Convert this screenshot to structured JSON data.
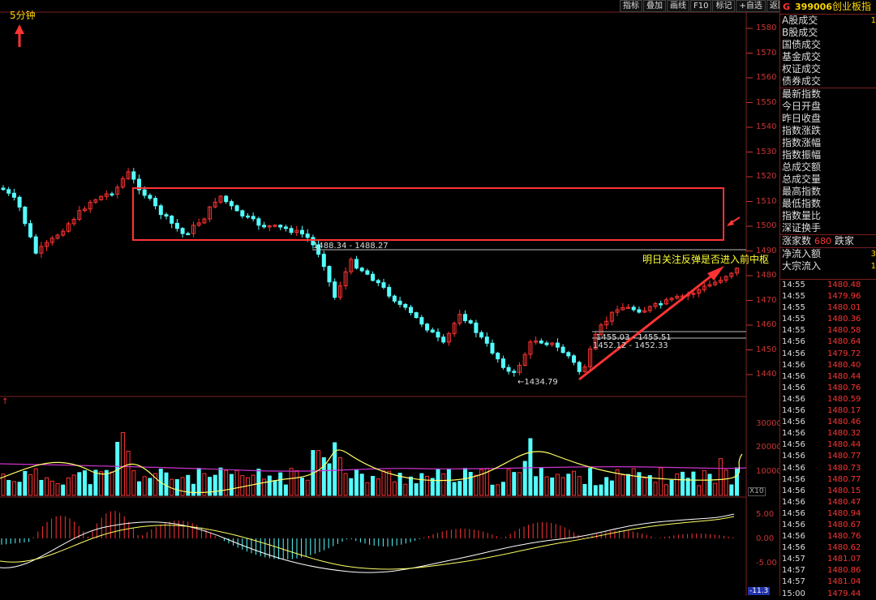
{
  "toolbar": {
    "buttons": [
      "指标",
      "叠加",
      "画线",
      "F10",
      "标记",
      "+自选",
      "返回"
    ]
  },
  "period": "5分钟",
  "annotation": "明日关注反弹是否进入前中枢",
  "price_labels": [
    {
      "text": "1488.34 - 1488.27"
    },
    {
      "text": "1455.03 - 1455.51"
    },
    {
      "text": "1452.12 - 1452.33"
    },
    {
      "text": "1434.79"
    }
  ],
  "price_axis": [
    "1580",
    "1570",
    "1560",
    "1550",
    "1540",
    "1530",
    "1520",
    "1510",
    "1500",
    "1490",
    "1480",
    "1470",
    "1460",
    "1450",
    "1440"
  ],
  "volume_axis": [
    "30000",
    "20000",
    "10000"
  ],
  "volume_unit": "X10",
  "macd_axis": [
    "5.00",
    "0.00",
    "-5.00"
  ],
  "macd_value": "-11.3",
  "colors": {
    "up": "#ff3333",
    "down": "#54ffff",
    "box": "#ff3333",
    "ma_yellow": "#ffff66",
    "ma_magenta": "#cc33cc"
  },
  "right_panel": {
    "marker": "G",
    "code": "399006",
    "name": "创业板指",
    "top_rows": [
      {
        "label": "A股成交",
        "value": "1"
      },
      {
        "label": "B股成交",
        "value": ""
      },
      {
        "label": "国债成交",
        "value": ""
      },
      {
        "label": "基金成交",
        "value": ""
      },
      {
        "label": "权证成交",
        "value": ""
      },
      {
        "label": "债券成交",
        "value": ""
      }
    ],
    "index_rows": [
      {
        "label": "最新指数"
      },
      {
        "label": "今日开盘"
      },
      {
        "label": "昨日收盘"
      },
      {
        "label": "指数涨跌"
      },
      {
        "label": "指数涨幅"
      },
      {
        "label": "指数振幅"
      },
      {
        "label": "总成交额"
      },
      {
        "label": "总成交量"
      },
      {
        "label": "最高指数"
      },
      {
        "label": "最低指数"
      },
      {
        "label": "指数量比"
      },
      {
        "label": "深证换手"
      }
    ],
    "rise_label": "涨家数",
    "rise_value": "680",
    "fall_label": "跌家",
    "flow_rows": [
      {
        "label": "净流入额",
        "value": "3"
      },
      {
        "label": "大宗流入",
        "value": "1"
      }
    ],
    "ticks": [
      {
        "t": "14:55",
        "p": "1480.48"
      },
      {
        "t": "14:55",
        "p": "1479.96"
      },
      {
        "t": "14:55",
        "p": "1480.01"
      },
      {
        "t": "14:55",
        "p": "1480.36"
      },
      {
        "t": "14:55",
        "p": "1480.58"
      },
      {
        "t": "14:56",
        "p": "1480.64"
      },
      {
        "t": "14:56",
        "p": "1479.72"
      },
      {
        "t": "14:56",
        "p": "1480.40"
      },
      {
        "t": "14:56",
        "p": "1480.44"
      },
      {
        "t": "14:56",
        "p": "1480.76"
      },
      {
        "t": "14:56",
        "p": "1480.59"
      },
      {
        "t": "14:56",
        "p": "1480.17"
      },
      {
        "t": "14:56",
        "p": "1480.46"
      },
      {
        "t": "14:56",
        "p": "1480.32"
      },
      {
        "t": "14:56",
        "p": "1480.44"
      },
      {
        "t": "14:56",
        "p": "1480.77"
      },
      {
        "t": "14:56",
        "p": "1480.73"
      },
      {
        "t": "14:56",
        "p": "1480.77"
      },
      {
        "t": "14:56",
        "p": "1480.15"
      },
      {
        "t": "14:56",
        "p": "1480.47"
      },
      {
        "t": "14:56",
        "p": "1480.94"
      },
      {
        "t": "14:56",
        "p": "1480.67"
      },
      {
        "t": "14:56",
        "p": "1480.76"
      },
      {
        "t": "14:56",
        "p": "1480.62"
      },
      {
        "t": "14:57",
        "p": "1481.07"
      },
      {
        "t": "14:57",
        "p": "1480.86"
      },
      {
        "t": "14:57",
        "p": "1481.04"
      },
      {
        "t": "15:00",
        "p": "1479.44"
      }
    ]
  }
}
